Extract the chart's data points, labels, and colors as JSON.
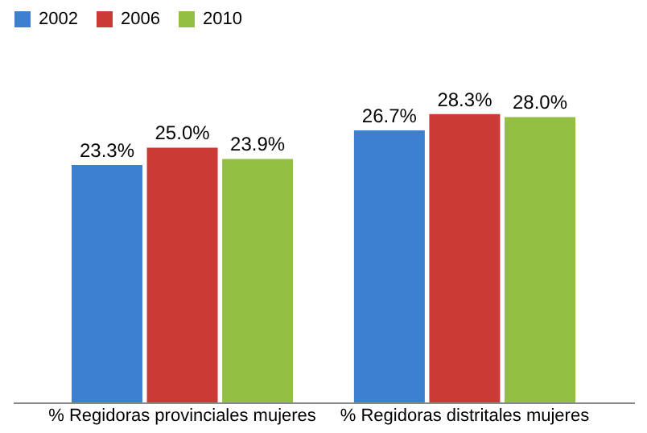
{
  "chart_data": {
    "type": "bar",
    "categories": [
      "% Regidoras provinciales mujeres",
      "% Regidoras distritales mujeres"
    ],
    "series": [
      {
        "name": "2002",
        "color": "#3d7fd0",
        "values": [
          23.3,
          26.7
        ],
        "value_labels": [
          "23.3%",
          "26.7%"
        ]
      },
      {
        "name": "2006",
        "color": "#cc3a35",
        "values": [
          25.0,
          28.3
        ],
        "value_labels": [
          "25.0%",
          "28.3%"
        ]
      },
      {
        "name": "2010",
        "color": "#93c043",
        "values": [
          23.9,
          28.0
        ],
        "value_labels": [
          "23.9%",
          "28.0%"
        ]
      }
    ],
    "legend": "top",
    "grid": false
  }
}
